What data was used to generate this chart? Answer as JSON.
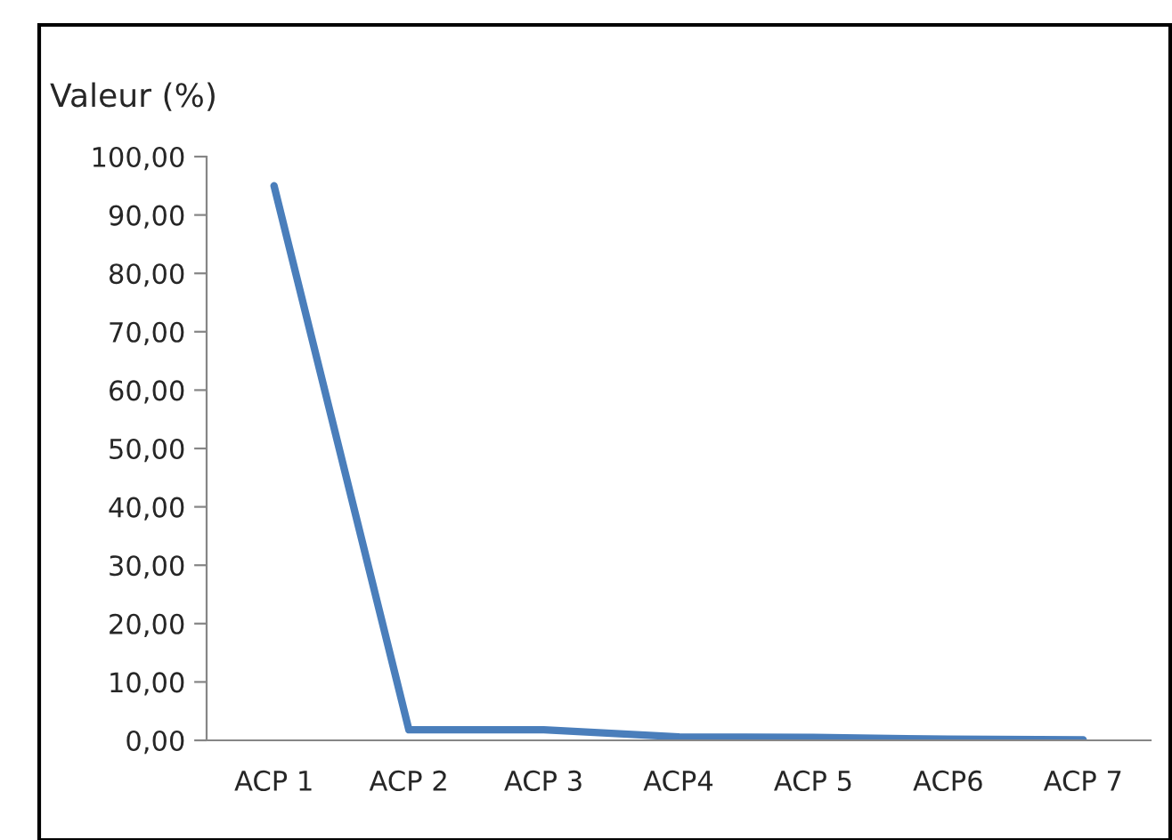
{
  "chart_data": {
    "type": "line",
    "ylabel": "Valeur (%)",
    "categories": [
      "ACP 1",
      "ACP 2",
      "ACP 3",
      "ACP4",
      "ACP 5",
      "ACP6",
      "ACP 7"
    ],
    "series": [
      {
        "color": "#4a7ebb",
        "values": [
          95,
          1.8,
          1.8,
          0.6,
          0.5,
          0.2,
          0.1
        ]
      }
    ],
    "ylim": [
      0,
      100
    ],
    "yticks": [
      {
        "value": 0,
        "label": "0,00"
      },
      {
        "value": 10,
        "label": "10,00"
      },
      {
        "value": 20,
        "label": "20,00"
      },
      {
        "value": 30,
        "label": "30,00"
      },
      {
        "value": 40,
        "label": "40,00"
      },
      {
        "value": 50,
        "label": "50,00"
      },
      {
        "value": 60,
        "label": "60,00"
      },
      {
        "value": 70,
        "label": "70,00"
      },
      {
        "value": 80,
        "label": "80,00"
      },
      {
        "value": 90,
        "label": "90,00"
      },
      {
        "value": 100,
        "label": "100,00"
      }
    ],
    "grid": false,
    "marker": "none",
    "line_style": "solid"
  }
}
